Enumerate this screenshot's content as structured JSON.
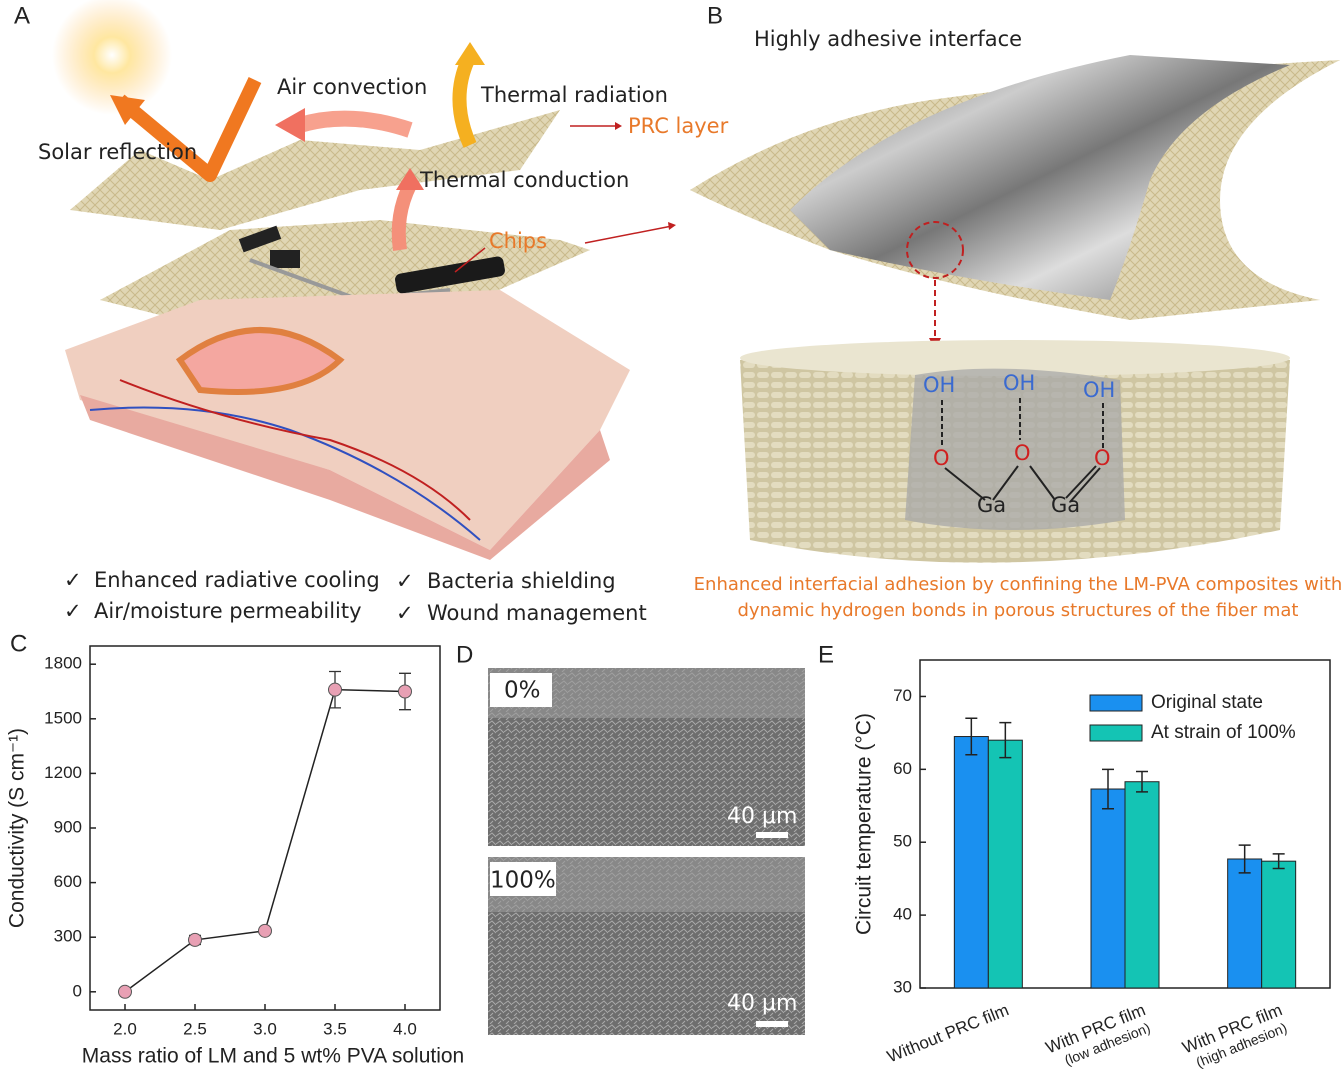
{
  "panel_a": {
    "label": "A",
    "annotations": [
      "Solar reflection",
      "Air convection",
      "Thermal radiation",
      "Thermal conduction"
    ],
    "callouts": [
      "PRC layer",
      "Chips"
    ],
    "features": [
      "Enhanced radiative cooling",
      "Bacteria shielding",
      "Air/moisture permeability",
      "Wound management"
    ]
  },
  "panel_b": {
    "label": "B",
    "title": "Highly adhesive interface",
    "groups": [
      "OH",
      "OH",
      "OH"
    ],
    "oxygens": [
      "O",
      "O",
      "O"
    ],
    "metals": [
      "Ga",
      "Ga"
    ],
    "caption": [
      "Enhanced interfacial adhesion by confining the LM-PVA composites with",
      "dynamic hydrogen bonds in porous structures of the fiber mat"
    ]
  },
  "panel_d": {
    "label": "D",
    "images": [
      {
        "strain": "0%",
        "scale": "40 μm"
      },
      {
        "strain": "100%",
        "scale": "40 μm"
      }
    ]
  },
  "chart_data": [
    {
      "type": "line",
      "panel_label": "C",
      "x_label": "Mass ratio of LM and 5 wt% PVA solution",
      "y_label": "Conductivity (S cm⁻¹)",
      "x": [
        2,
        2.5,
        3,
        3.5,
        4
      ],
      "values": [
        0,
        285,
        335,
        1660,
        1650
      ],
      "errors": [
        0,
        25,
        15,
        100,
        100
      ],
      "color": "#e8a0b4",
      "xlim": [
        1.75,
        4.25
      ],
      "xticks": [
        {
          "value": 2,
          "label": "2.0"
        },
        {
          "value": 2.5,
          "label": "2.5"
        },
        {
          "value": 3,
          "label": "3.0"
        },
        {
          "value": 3.5,
          "label": "3.5"
        },
        {
          "value": 4,
          "label": "4.0"
        }
      ],
      "ylim": [
        -100,
        1900
      ],
      "yticks": [
        0,
        300,
        600,
        900,
        1200,
        1500,
        1800
      ]
    },
    {
      "type": "bar",
      "panel_label": "E",
      "y_label": "Circuit  temperature (°C)",
      "categories": [
        "Without PRC film",
        "With PRC film",
        "With PRC film"
      ],
      "category_notes": [
        null,
        "(low adhesion)",
        "(high adhesion)"
      ],
      "series": [
        {
          "name": "Original state",
          "color": "#1a90f0",
          "values": [
            64.5,
            57.3,
            47.7
          ],
          "errors": [
            2.5,
            2.7,
            1.9
          ]
        },
        {
          "name": "At strain of 100%",
          "color": "#14c4b4",
          "values": [
            64,
            58.3,
            47.4
          ],
          "errors": [
            2.4,
            1.4,
            1.0
          ]
        }
      ],
      "ylim": [
        30,
        75
      ],
      "yticks": [
        30,
        40,
        50,
        60,
        70
      ],
      "legend": "upper right"
    }
  ]
}
